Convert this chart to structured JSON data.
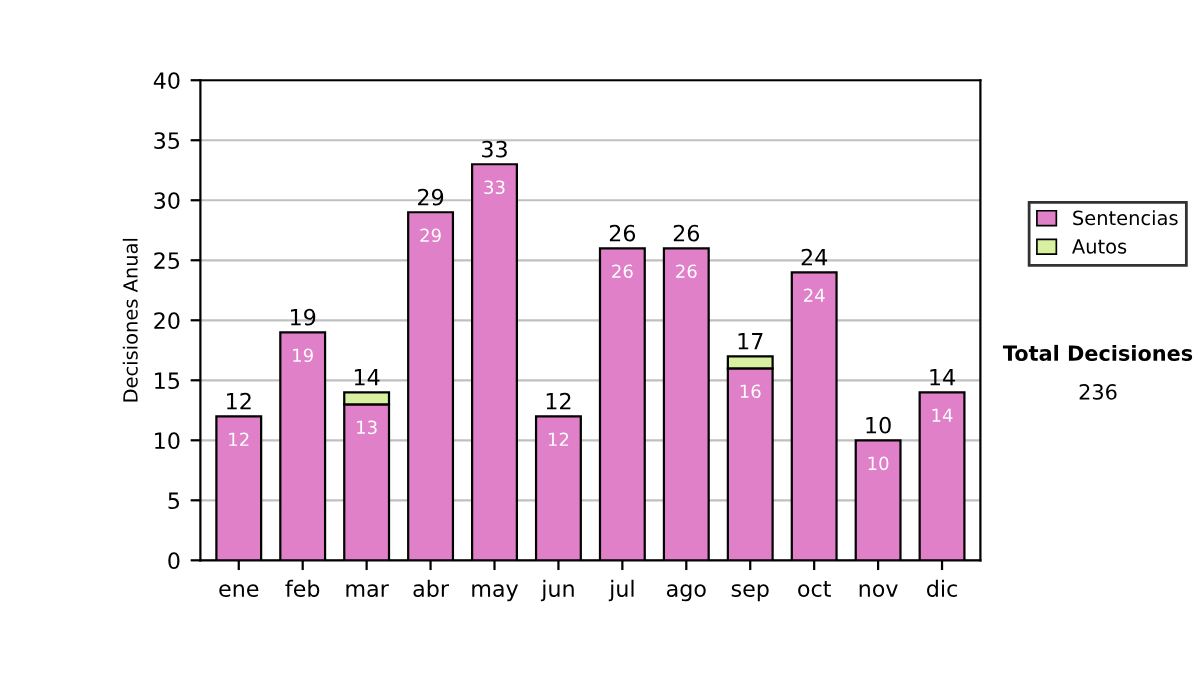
{
  "chart_data": {
    "type": "bar",
    "stacked": true,
    "ylabel": "Decisiones Anual",
    "categories": [
      "ene",
      "feb",
      "mar",
      "abr",
      "may",
      "jun",
      "jul",
      "ago",
      "sep",
      "oct",
      "nov",
      "dic"
    ],
    "series": [
      {
        "name": "Sentencias",
        "color": "#e080c8",
        "values": [
          12,
          19,
          13,
          29,
          33,
          12,
          26,
          26,
          16,
          24,
          10,
          14
        ],
        "value_labels": [
          "12",
          "19",
          "13",
          "29",
          "33",
          "12",
          "26",
          "26",
          "16",
          "24",
          "10",
          "14"
        ]
      },
      {
        "name": "Autos",
        "color": "#d8f0a0",
        "values": [
          null,
          null,
          1,
          null,
          null,
          null,
          null,
          null,
          1,
          null,
          null,
          null
        ]
      }
    ],
    "totals": [
      "12",
      "19",
      "14",
      "29",
      "33",
      "12",
      "26",
      "26",
      "17",
      "24",
      "10",
      "14"
    ],
    "ylim": [
      0,
      40
    ],
    "yticks": [
      0,
      5,
      10,
      15,
      20,
      25,
      30,
      35,
      40
    ],
    "grid": "y",
    "legend": "right",
    "annotations": [
      "Total Decisiones",
      "236"
    ]
  }
}
